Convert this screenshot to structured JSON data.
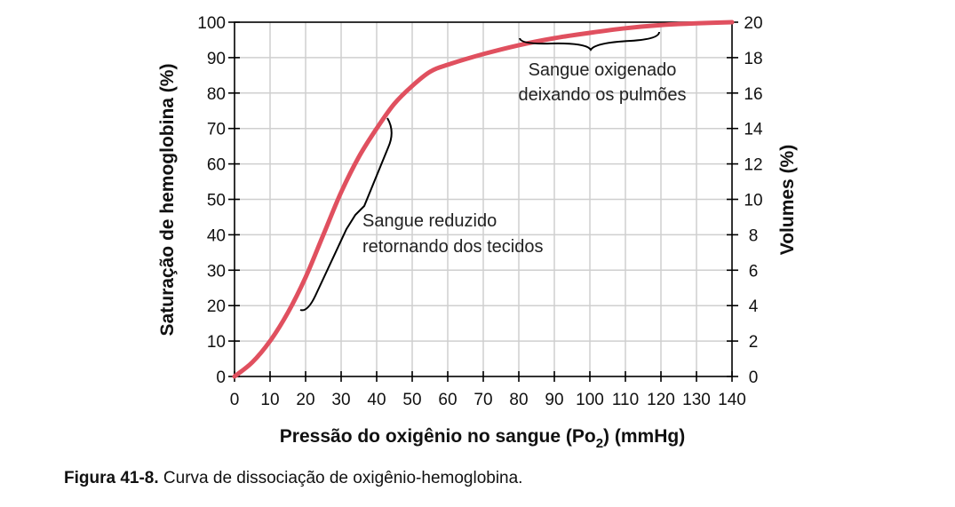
{
  "chart_data": {
    "type": "line",
    "x_label_prefix": "Pressão do oxigênio no sangue (Po",
    "x_label_sub": "2",
    "x_label_suffix": ") (mmHg)",
    "ylabel_left": "Saturação de hemoglobina (%)",
    "ylabel_right": "Volumes (%)",
    "xlim": [
      0,
      140
    ],
    "ylim": [
      0,
      100
    ],
    "y2lim": [
      0,
      20
    ],
    "x_ticks": [
      "0",
      "10",
      "20",
      "30",
      "40",
      "50",
      "60",
      "70",
      "80",
      "90",
      "100",
      "110",
      "120",
      "130",
      "140"
    ],
    "y_ticks": [
      "0",
      "10",
      "20",
      "30",
      "40",
      "50",
      "60",
      "70",
      "80",
      "90",
      "100"
    ],
    "y2_ticks": [
      "0",
      "2",
      "4",
      "6",
      "8",
      "10",
      "12",
      "14",
      "16",
      "18",
      "20"
    ],
    "grid": true,
    "line_color": "#e0505f",
    "series": [
      {
        "x": [
          0,
          5,
          10,
          15,
          20,
          25,
          30,
          35,
          40,
          45,
          50,
          55,
          60,
          70,
          80,
          90,
          100,
          110,
          120,
          130,
          140
        ],
        "y": [
          0,
          4,
          10,
          18,
          28,
          40,
          52,
          62,
          70,
          77,
          82,
          86,
          88,
          91,
          93.5,
          95.5,
          97,
          98.3,
          99.2,
          99.7,
          100
        ]
      }
    ],
    "annotations": [
      {
        "lines": [
          "Sangue oxigenado",
          "deixando os pulmões"
        ]
      },
      {
        "lines": [
          "Sangue reduzido",
          "retornando dos tecidos"
        ]
      }
    ]
  },
  "caption": {
    "label": "Figura 41-8.",
    "text": " Curva de dissociação de oxigênio-hemoglobina."
  }
}
